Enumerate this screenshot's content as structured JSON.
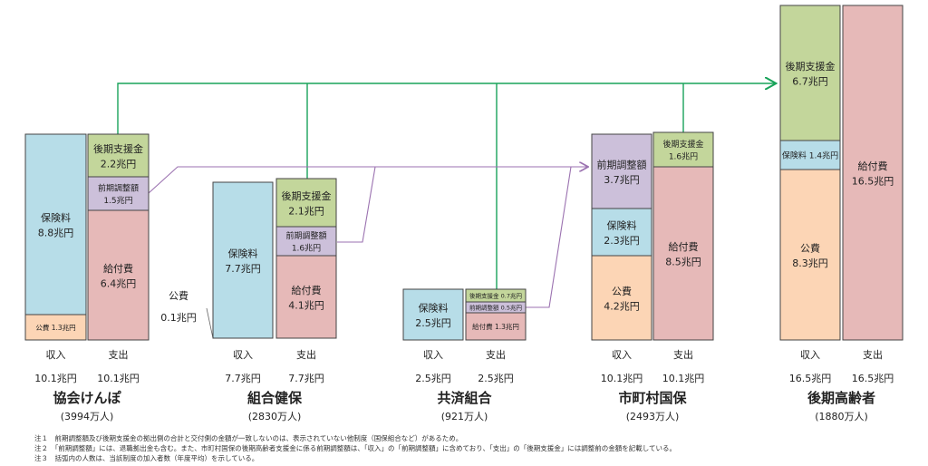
{
  "colors": {
    "insurance": "#b7dde8",
    "public": "#fcd5b5",
    "benefit": "#e6b9b8",
    "support": "#c3d69b",
    "adjust": "#ccc0da",
    "green_line": "#19a35a",
    "purple_line": "#9b72b0"
  },
  "groups": [
    {
      "name": "協会けんぽ",
      "members": "(3994万人)",
      "revenue_label": "収入",
      "expense_label": "支出",
      "revenue_total": "10.1兆円",
      "expense_total": "10.1兆円",
      "revenue": [
        {
          "label": "保険料",
          "value": "8.8兆円",
          "kind": "insurance"
        },
        {
          "label": "公費",
          "value": "1.3兆円",
          "kind": "public"
        }
      ],
      "expense": [
        {
          "label": "後期支援金",
          "value": "2.2兆円",
          "kind": "support"
        },
        {
          "label": "前期調整額",
          "value": "1.5兆円",
          "kind": "adjust"
        },
        {
          "label": "給付費",
          "value": "6.4兆円",
          "kind": "benefit"
        }
      ]
    },
    {
      "name": "組合健保",
      "members": "(2830万人)",
      "revenue_label": "収入",
      "expense_label": "支出",
      "revenue_total": "7.7兆円",
      "expense_total": "7.7兆円",
      "public_label": "公費",
      "public_value": "0.1兆円",
      "revenue": [
        {
          "label": "保険料",
          "value": "7.7兆円",
          "kind": "insurance"
        }
      ],
      "expense": [
        {
          "label": "後期支援金",
          "value": "2.1兆円",
          "kind": "support"
        },
        {
          "label": "前期調整額",
          "value": "1.6兆円",
          "kind": "adjust"
        },
        {
          "label": "給付費",
          "value": "4.1兆円",
          "kind": "benefit"
        }
      ]
    },
    {
      "name": "共済組合",
      "members": "(921万人)",
      "revenue_label": "収入",
      "expense_label": "支出",
      "revenue_total": "2.5兆円",
      "expense_total": "2.5兆円",
      "revenue": [
        {
          "label": "保険料",
          "value": "2.5兆円",
          "kind": "insurance"
        }
      ],
      "expense": [
        {
          "label": "後期支援金",
          "value": "0.7兆円",
          "kind": "support"
        },
        {
          "label": "前期調整額",
          "value": "0.5兆円",
          "kind": "adjust"
        },
        {
          "label": "給付費",
          "value": "1.3兆円",
          "kind": "benefit"
        }
      ]
    },
    {
      "name": "市町村国保",
      "members": "(2493万人)",
      "revenue_label": "収入",
      "expense_label": "支出",
      "revenue_total": "10.1兆円",
      "expense_total": "10.1兆円",
      "revenue": [
        {
          "label": "前期調整額",
          "value": "3.7兆円",
          "kind": "adjust"
        },
        {
          "label": "保険料",
          "value": "2.3兆円",
          "kind": "insurance"
        },
        {
          "label": "公費",
          "value": "4.2兆円",
          "kind": "public"
        }
      ],
      "expense": [
        {
          "label": "後期支援金",
          "value": "1.6兆円",
          "kind": "support"
        },
        {
          "label": "給付費",
          "value": "8.5兆円",
          "kind": "benefit"
        }
      ]
    },
    {
      "name": "後期高齢者",
      "members": "(1880万人)",
      "revenue_label": "収入",
      "expense_label": "支出",
      "revenue_total": "16.5兆円",
      "expense_total": "16.5兆円",
      "revenue": [
        {
          "label": "後期支援金",
          "value": "6.7兆円",
          "kind": "support"
        },
        {
          "label": "保険料",
          "value": "1.4兆円",
          "kind": "insurance"
        },
        {
          "label": "公費",
          "value": "8.3兆円",
          "kind": "public"
        }
      ],
      "expense": [
        {
          "label": "給付費",
          "value": "16.5兆円",
          "kind": "benefit"
        }
      ]
    }
  ],
  "notes": [
    "注１　前期調整額及び後期支援金の拠出側の合計と交付側の金額が一致しないのは、表示されていない他制度（国保組合など）があるため。",
    "注２　「前期調整額」には、退職拠出金も含む。また、市町村国保の後期高齢者支援金に係る前期調整額は、「収入」の「前期調整額」に含めており、「支出」の「後期支援金」には調整前の金額を記載している。",
    "注３　括弧内の人数は、当該制度の加入者数（年度平均）を示している。"
  ]
}
